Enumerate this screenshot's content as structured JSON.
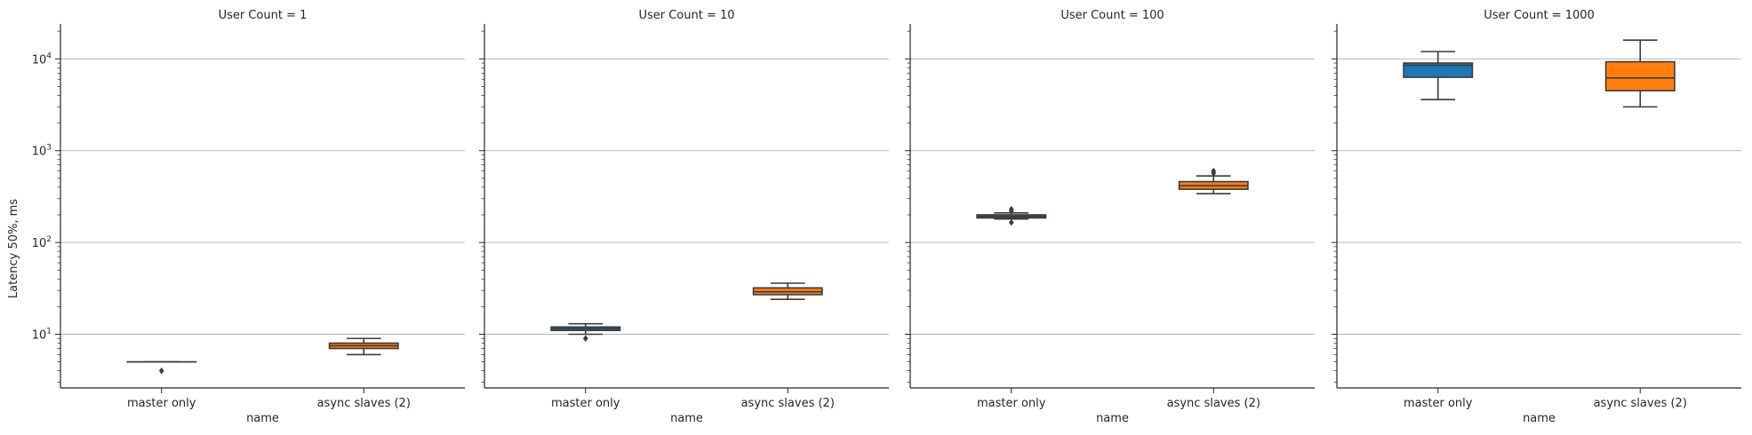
{
  "figure": {
    "ylabel": "Latency 50%, ms",
    "xlabel": "name",
    "yscale": "log",
    "ylim": [
      2.6,
      24000
    ],
    "y_ticks": [
      {
        "value": 10,
        "base": "10",
        "exp": "1"
      },
      {
        "value": 100,
        "base": "10",
        "exp": "2"
      },
      {
        "value": 1000,
        "base": "10",
        "exp": "3"
      },
      {
        "value": 10000,
        "base": "10",
        "exp": "4"
      }
    ],
    "grid": "horizontal major",
    "colors": {
      "master only": "#1f77b4",
      "async slaves (2)": "#ff7f0e",
      "grid": "#b0b0b0",
      "axis": "#262626",
      "line": "#3c3c3c"
    }
  },
  "chart_data": [
    {
      "type": "box",
      "title": "User Count = 1",
      "categories": [
        "master only",
        "async slaves (2)"
      ],
      "boxes": [
        {
          "name": "master only",
          "whisker_low": 5,
          "q1": 5,
          "median": 5,
          "q3": 5,
          "whisker_high": 5,
          "outliers": [
            4
          ]
        },
        {
          "name": "async slaves (2)",
          "whisker_low": 6,
          "q1": 7,
          "median": 7.5,
          "q3": 8,
          "whisker_high": 9,
          "outliers": []
        }
      ]
    },
    {
      "type": "box",
      "title": "User Count = 10",
      "categories": [
        "master only",
        "async slaves (2)"
      ],
      "boxes": [
        {
          "name": "master only",
          "whisker_low": 10,
          "q1": 11,
          "median": 11.5,
          "q3": 12,
          "whisker_high": 13,
          "outliers": [
            9
          ]
        },
        {
          "name": "async slaves (2)",
          "whisker_low": 24,
          "q1": 27,
          "median": 29,
          "q3": 32,
          "whisker_high": 36,
          "outliers": []
        }
      ]
    },
    {
      "type": "box",
      "title": "User Count = 100",
      "categories": [
        "master only",
        "async slaves (2)"
      ],
      "boxes": [
        {
          "name": "master only",
          "whisker_low": 180,
          "q1": 185,
          "median": 192,
          "q3": 200,
          "whisker_high": 210,
          "outliers": [
            165,
            220,
            230
          ]
        },
        {
          "name": "async slaves (2)",
          "whisker_low": 340,
          "q1": 380,
          "median": 415,
          "q3": 460,
          "whisker_high": 530,
          "outliers": [
            570,
            600
          ]
        }
      ]
    },
    {
      "type": "box",
      "title": "User Count = 1000",
      "categories": [
        "master only",
        "async slaves (2)"
      ],
      "boxes": [
        {
          "name": "master only",
          "whisker_low": 3600,
          "q1": 6300,
          "median": 8500,
          "q3": 9000,
          "whisker_high": 12000,
          "outliers": []
        },
        {
          "name": "async slaves (2)",
          "whisker_low": 3000,
          "q1": 4500,
          "median": 6200,
          "q3": 9300,
          "whisker_high": 16000,
          "outliers": []
        }
      ]
    }
  ]
}
